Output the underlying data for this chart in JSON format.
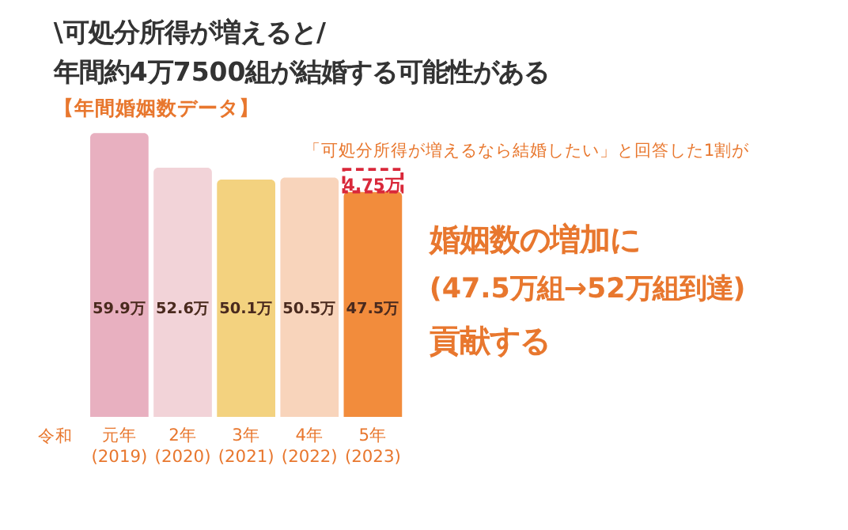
{
  "chart_data": {
    "type": "bar",
    "title": "\\可処分所得が増えると/\n年間約4万7500組が結婚する可能性がある",
    "subtitle": "【年間婚姻数データ】",
    "categories": [
      "元年 (2019)",
      "2年 (2020)",
      "3年 (2021)",
      "4年 (2022)",
      "5年 (2023)"
    ],
    "stacked": true,
    "series": [
      {
        "colors": [
          "#e8b0c0",
          "#f2d3d8",
          "#f3d27f",
          "#f8d4bb",
          "#f28c3c"
        ],
        "values": [
          59.9,
          52.6,
          50.1,
          50.5,
          47.5
        ],
        "value_labels": [
          "59.9万",
          "52.6万",
          "50.1万",
          "50.5万",
          "47.5万"
        ]
      },
      {
        "color": "#d9283a",
        "line_style": "dashed",
        "values": [
          null,
          null,
          null,
          null,
          4.75
        ],
        "value_labels": [
          null,
          null,
          null,
          null,
          "4.75万"
        ]
      }
    ],
    "annotations": [
      "令和",
      "「可処分所得が増えるなら結婚したい」と回答した1割が",
      "婚姻数の増加に",
      "(47.5万組→52万組到達)",
      "貢献する"
    ]
  }
}
